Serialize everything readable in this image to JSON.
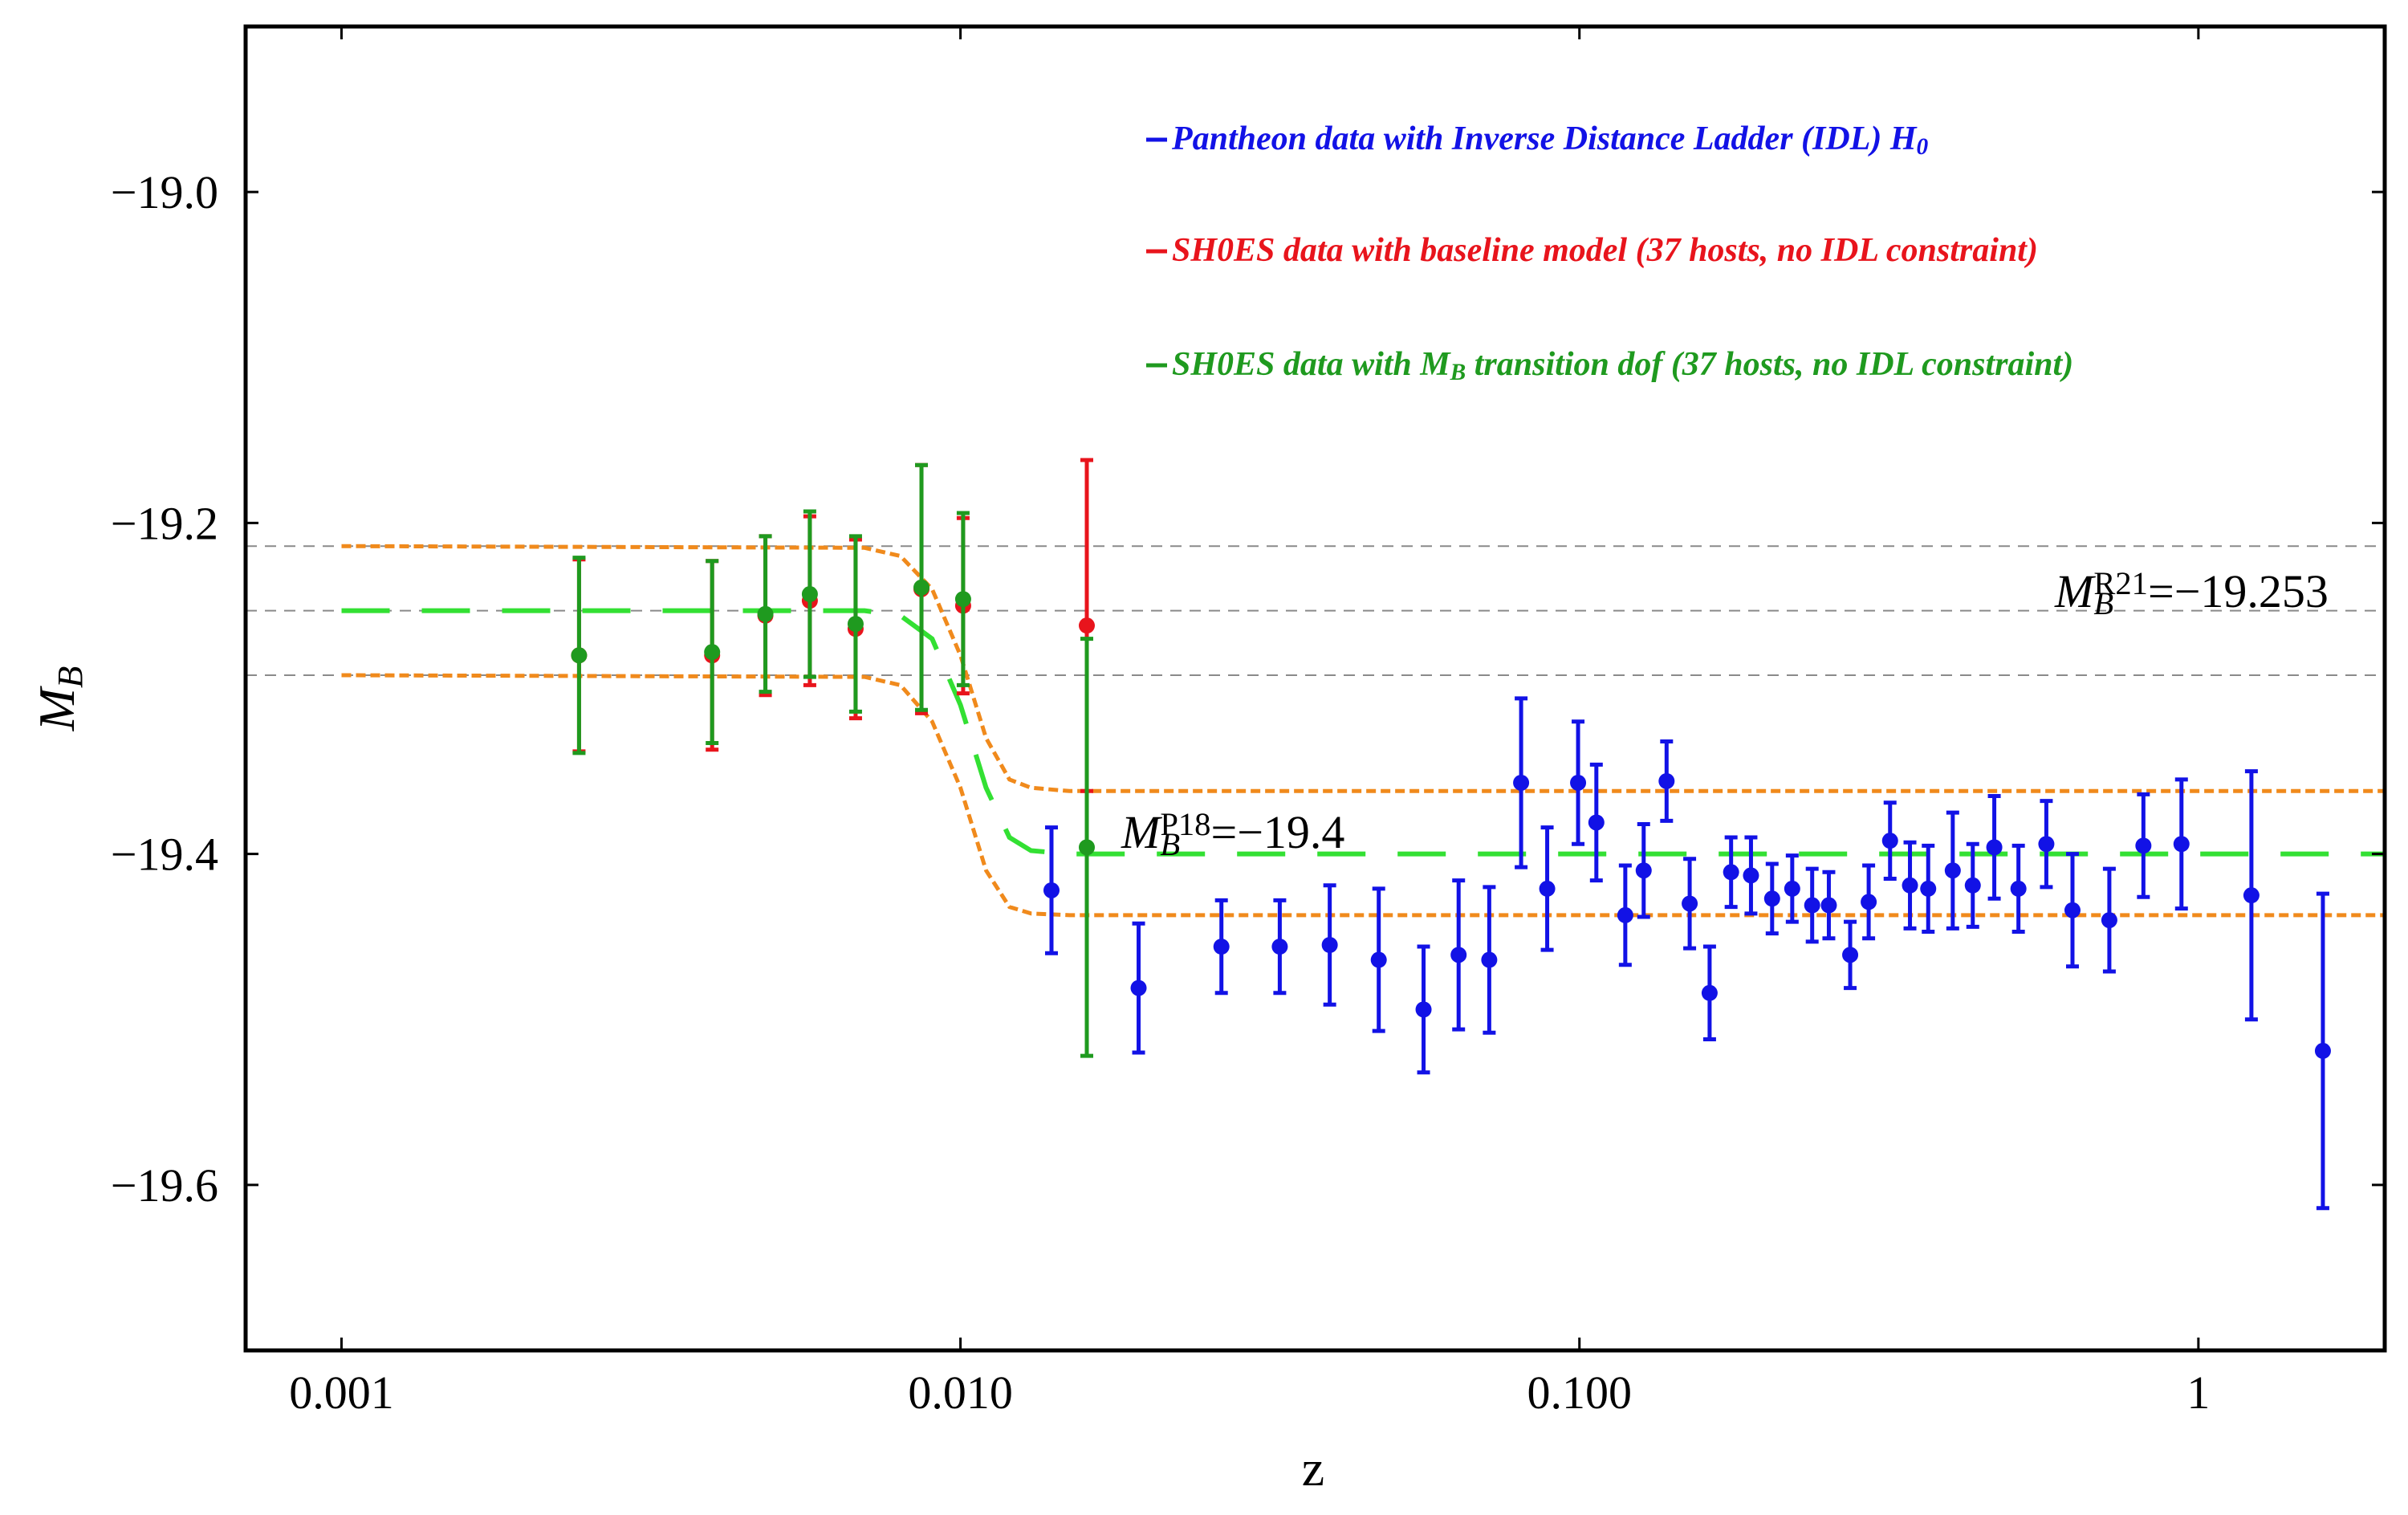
{
  "chart_data": {
    "type": "scatter",
    "x_label": [
      {
        "text": "z"
      }
    ],
    "y_label": [
      {
        "text": "M",
        "italic": true
      },
      {
        "text": "B",
        "sub": true,
        "italic": true
      }
    ],
    "xlim": [
      0.0007,
      2
    ],
    "ylim": [
      -19.7,
      -18.9
    ],
    "log_x": true,
    "xticks": [
      {
        "value": 0.001,
        "label": "0.001"
      },
      {
        "value": 0.01,
        "label": "0.010"
      },
      {
        "value": 0.1,
        "label": "0.100"
      },
      1
    ],
    "yticks": [
      {
        "value": -19.0,
        "label": "−19.0"
      },
      {
        "value": -19.2,
        "label": "−19.2"
      },
      {
        "value": -19.4,
        "label": "−19.4"
      },
      {
        "value": -19.6,
        "label": "−19.6"
      }
    ],
    "hlines": [
      -19.214,
      -19.253,
      -19.292
    ],
    "hline_color": "#8a8a8a",
    "curves": [
      {
        "color": "#f08a1c",
        "style": "dashed",
        "x": [
          0.001,
          0.007,
          0.008,
          0.009,
          0.01,
          0.011,
          0.012,
          0.013,
          0.015,
          2
        ],
        "values": [
          -19.214,
          -19.215,
          -19.22,
          -19.24,
          -19.28,
          -19.33,
          -19.355,
          -19.36,
          -19.362,
          -19.362
        ]
      },
      {
        "color": "#f08a1c",
        "style": "dashed",
        "x": [
          0.001,
          0.007,
          0.008,
          0.009,
          0.01,
          0.011,
          0.012,
          0.013,
          0.015,
          2
        ],
        "values": [
          -19.292,
          -19.293,
          -19.298,
          -19.32,
          -19.36,
          -19.41,
          -19.432,
          -19.436,
          -19.437,
          -19.437
        ]
      },
      {
        "color": "#33e033",
        "style": "long-dashed",
        "x": [
          0.001,
          0.007,
          0.008,
          0.009,
          0.01,
          0.011,
          0.012,
          0.013,
          0.015,
          2
        ],
        "values": [
          -19.253,
          -19.253,
          -19.256,
          -19.27,
          -19.31,
          -19.36,
          -19.39,
          -19.398,
          -19.4,
          -19.4
        ]
      }
    ],
    "series": [
      {
        "name": [
          {
            "text": "Pantheon data with Inverse Distance Ladder (IDL) H"
          },
          {
            "text": "0",
            "sub": true
          }
        ],
        "color": "#1212e6",
        "x": [
          0.01403,
          0.0194,
          0.0264,
          0.0328,
          0.0395,
          0.0474,
          0.056,
          0.0638,
          0.0715,
          0.0805,
          0.0887,
          0.0995,
          0.1065,
          0.1186,
          0.127,
          0.1383,
          0.1507,
          0.1623,
          0.1758,
          0.1893,
          0.2048,
          0.2207,
          0.2377,
          0.2529,
          0.2738,
          0.2933,
          0.3176,
          0.342,
          0.366,
          0.401,
          0.432,
          0.468,
          0.512,
          0.568,
          0.626,
          0.718,
          0.815,
          0.939,
          1.218,
          1.589
        ],
        "values": [
          -19.422,
          -19.481,
          -19.456,
          -19.456,
          -19.455,
          -19.464,
          -19.494,
          -19.461,
          -19.464,
          -19.357,
          -19.421,
          -19.357,
          -19.381,
          -19.437,
          -19.41,
          -19.356,
          -19.43,
          -19.484,
          -19.411,
          -19.413,
          -19.427,
          -19.421,
          -19.431,
          -19.431,
          -19.461,
          -19.429,
          -19.392,
          -19.419,
          -19.421,
          -19.41,
          -19.419,
          -19.396,
          -19.421,
          -19.394,
          -19.434,
          -19.44,
          -19.395,
          -19.394,
          -19.425,
          -19.519
        ],
        "errors": [
          0.038,
          0.039,
          0.028,
          0.028,
          0.036,
          0.043,
          0.038,
          0.045,
          0.044,
          0.051,
          0.037,
          0.037,
          0.035,
          0.03,
          0.028,
          0.024,
          0.027,
          0.028,
          0.021,
          0.023,
          0.021,
          0.02,
          0.022,
          0.02,
          0.02,
          0.022,
          0.023,
          0.026,
          0.026,
          0.035,
          0.025,
          0.031,
          0.026,
          0.026,
          0.034,
          0.031,
          0.031,
          0.039,
          0.075,
          0.095
        ]
      },
      {
        "name": [
          {
            "text": "SH0ES data with baseline  model (37 hosts, no IDL constraint)"
          }
        ],
        "color": "#e8141c",
        "x": [
          0.00242,
          0.00397,
          0.00484,
          0.00571,
          0.00677,
          0.00865,
          0.0101,
          0.016
        ],
        "values": [
          -19.28,
          -19.28,
          -19.256,
          -19.247,
          -19.264,
          -19.24,
          -19.25,
          -19.262
        ],
        "errors": [
          0.058,
          0.057,
          0.048,
          0.051,
          0.054,
          0.075,
          0.053,
          0.1
        ]
      },
      {
        "name": [
          {
            "text": "SH0ES data with "
          },
          {
            "text": "M"
          },
          {
            "text": "B",
            "sub": true
          },
          {
            "text": " transition dof  (37 hosts, no IDL constraint)"
          }
        ],
        "color": "#1f9a1f",
        "x": [
          0.00242,
          0.00397,
          0.00484,
          0.00571,
          0.00677,
          0.00865,
          0.0101,
          0.016
        ],
        "values": [
          -19.28,
          -19.278,
          -19.255,
          -19.243,
          -19.261,
          -19.239,
          -19.246,
          -19.396
        ],
        "errors": [
          0.059,
          0.055,
          0.047,
          0.05,
          0.053,
          0.074,
          0.052,
          0.126
        ]
      }
    ],
    "annotations": [
      [
        {
          "text": "M",
          "italic": true
        },
        {
          "text": "B",
          "sub": true,
          "italic": true
        },
        {
          "text": "R21",
          "sup": true
        },
        {
          "text": "=−19.253"
        }
      ],
      [
        {
          "text": "M",
          "italic": true
        },
        {
          "text": "B",
          "sub": true,
          "italic": true
        },
        {
          "text": "P18",
          "sup": true
        },
        {
          "text": "=−19.4"
        }
      ]
    ]
  }
}
